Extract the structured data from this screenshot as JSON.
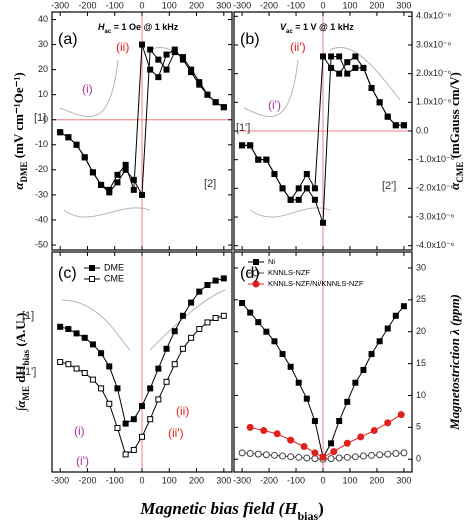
{
  "figure": {
    "xlabel": [
      "Magnetic bias field (H",
      "bias",
      ")"
    ]
  },
  "chart_data": [
    {
      "type": "line",
      "ylabel": [
        "α",
        "DME",
        " (mV cm⁻¹Oe⁻¹)"
      ],
      "condition": [
        "H",
        "ac",
        " = 1 Oe @ 1 kHz"
      ],
      "x": [
        -300,
        -270,
        -240,
        -210,
        -180,
        -150,
        -120,
        -90,
        -60,
        -30,
        0,
        30,
        60,
        90,
        120,
        150,
        180,
        210,
        240,
        270,
        300
      ],
      "xlim": [
        -330,
        330
      ],
      "xticks": [
        -300,
        -200,
        -100,
        0,
        100,
        200,
        300
      ],
      "ylim": [
        -52,
        43
      ],
      "yticks": [
        40,
        30,
        20,
        10,
        0,
        -10,
        -20,
        -30,
        -40,
        -50
      ],
      "refline_x": 0,
      "refline_y": 0,
      "refline_color": "#f08080",
      "series": [
        {
          "color": "#000",
          "marker": "square",
          "filled": true,
          "values": [
            -5,
            -7,
            -10,
            -15,
            -21,
            -26,
            -28,
            -22,
            -18,
            -28,
            30,
            20,
            17,
            26,
            28,
            24,
            19,
            14,
            10,
            7,
            5
          ]
        },
        {
          "color": "#000",
          "marker": "square",
          "filled": true,
          "values": [
            -5,
            -7,
            -10,
            -15,
            -21,
            -26,
            -29,
            -25,
            -20,
            -24,
            -30,
            28,
            24,
            20,
            27,
            25,
            20,
            15,
            10,
            7,
            5
          ]
        }
      ],
      "annotations": [
        {
          "text": "(a)",
          "color": "#000"
        },
        {
          "text": "(ii)",
          "color": "#e0201e"
        },
        {
          "text": "(i)",
          "color": "#b0309a"
        },
        {
          "text": "[1]",
          "color": "#333"
        },
        {
          "text": "[2]",
          "color": "#333"
        }
      ]
    },
    {
      "type": "line",
      "ylabel": [
        "α",
        "CME",
        " (mGauss cm/V)"
      ],
      "condition": [
        "V",
        "ac",
        " = 1 V @ 1 kHz"
      ],
      "x": [
        -300,
        -270,
        -240,
        -210,
        -180,
        -150,
        -120,
        -90,
        -60,
        -30,
        0,
        30,
        60,
        90,
        120,
        150,
        180,
        210,
        240,
        270,
        300
      ],
      "xlim": [
        -330,
        330
      ],
      "xticks": [
        -300,
        -200,
        -100,
        0,
        100,
        200,
        300
      ],
      "ylim": [
        -4.15e-06,
        4.15e-06
      ],
      "yticks": [
        {
          "value": 4e-06,
          "label": "4.0x10⁻⁶"
        },
        {
          "value": 3e-06,
          "label": "3.0x10⁻⁶"
        },
        {
          "value": 2e-06,
          "label": "2.0x10⁻⁶"
        },
        {
          "value": 1e-06,
          "label": "1.0x10⁻⁶"
        },
        {
          "value": 0,
          "label": "0.0"
        },
        {
          "value": -1e-06,
          "label": "-1.0x10⁻⁶"
        },
        {
          "value": -2e-06,
          "label": "-2.0x10⁻⁶"
        },
        {
          "value": -3e-06,
          "label": "-3.0x10⁻⁶"
        },
        {
          "value": -4e-06,
          "label": "-4.0x10⁻⁶"
        }
      ],
      "refline_x": 0,
      "refline_y": 0,
      "refline_color": "#f08080",
      "series": [
        {
          "color": "#000",
          "marker": "square",
          "filled": true,
          "values": [
            -5e-07,
            -5e-07,
            -1e-06,
            -1e-06,
            -1.5e-06,
            -2e-06,
            -2.4e-06,
            -2e-06,
            -1.5e-06,
            -2e-06,
            2.6e-06,
            2.2e-06,
            2e-06,
            2.4e-06,
            2.6e-06,
            2.2e-06,
            1.5e-06,
            1e-06,
            5e-07,
            2e-07,
            2e-07
          ]
        },
        {
          "color": "#000",
          "marker": "square",
          "filled": true,
          "values": [
            -5e-07,
            -5e-07,
            -1e-06,
            -1e-06,
            -1.5e-06,
            -2e-06,
            -2.4e-06,
            -2.4e-06,
            -2e-06,
            -2.4e-06,
            -3.2e-06,
            2.6e-06,
            2.6e-06,
            2e-06,
            2.2e-06,
            2.2e-06,
            1.5e-06,
            1e-06,
            5e-07,
            2e-07,
            2e-07
          ]
        }
      ],
      "annotations": [
        {
          "text": "(b)",
          "color": "#000"
        },
        {
          "text": "(ii')",
          "color": "#e0201e"
        },
        {
          "text": "(i')",
          "color": "#b0309a"
        },
        {
          "text": "[1']",
          "color": "#333"
        },
        {
          "text": "[2']",
          "color": "#333"
        }
      ]
    },
    {
      "type": "line",
      "ylabel": [
        "∫α",
        "ME",
        " dH",
        "bias",
        " (A.U.)"
      ],
      "x": [
        -300,
        -270,
        -240,
        -210,
        -180,
        -150,
        -120,
        -90,
        -60,
        -30,
        0,
        30,
        60,
        90,
        120,
        150,
        180,
        210,
        240,
        270,
        300
      ],
      "xlim": [
        -330,
        330
      ],
      "xticks": [
        -300,
        -200,
        -100,
        0,
        100,
        200,
        300
      ],
      "ylim": [
        0,
        100
      ],
      "refline_x": 0,
      "refline_color": "#f08080",
      "legend": "upper left",
      "series": [
        {
          "name": "DME",
          "color": "#000",
          "marker": "square",
          "filled": true,
          "values": [
            66,
            65,
            63,
            61,
            58,
            54,
            48,
            38,
            22,
            24,
            30,
            38,
            47,
            56,
            64,
            71,
            77,
            82,
            85,
            87,
            88
          ]
        },
        {
          "name": "CME",
          "color": "#000",
          "marker": "square",
          "filled": false,
          "values": [
            50,
            49,
            47,
            45,
            42,
            38,
            31,
            20,
            8,
            10,
            16,
            24,
            33,
            41,
            49,
            56,
            61,
            65,
            68,
            70,
            71
          ]
        }
      ],
      "annotations": [
        {
          "text": "(c)",
          "color": "#000"
        },
        {
          "text": "[1]",
          "color": "#333"
        },
        {
          "text": "[1']",
          "color": "#333"
        },
        {
          "text": "(i)",
          "color": "#b0309a"
        },
        {
          "text": "(ii)",
          "color": "#e0201e"
        },
        {
          "text": "(ii')",
          "color": "#e0201e"
        },
        {
          "text": "(i')",
          "color": "#b0309a"
        }
      ]
    },
    {
      "type": "line",
      "ylabel": [
        "Magnetostriction λ (ppm)"
      ],
      "x": [
        -300,
        -270,
        -240,
        -210,
        -180,
        -150,
        -120,
        -90,
        -60,
        -30,
        0,
        30,
        60,
        90,
        120,
        150,
        180,
        210,
        240,
        270,
        300
      ],
      "xlim": [
        -330,
        330
      ],
      "xticks": [
        -300,
        -200,
        -100,
        0,
        100,
        200,
        300
      ],
      "ylim": [
        -2,
        32.5
      ],
      "yticks": [
        0,
        5,
        10,
        15,
        20,
        25,
        30
      ],
      "refline_x": 0,
      "refline_color": "#f08080",
      "legend": "upper left",
      "series": [
        {
          "name": "Ni",
          "color": "#000",
          "marker": "square",
          "filled": true,
          "values": [
            24.5,
            23,
            21.5,
            20,
            18.5,
            16.5,
            14.5,
            12,
            9.5,
            6,
            0.3,
            2.5,
            6,
            9,
            12,
            14,
            16.5,
            18.5,
            20.5,
            22.5,
            24
          ]
        },
        {
          "name": "KNNLS-NZF",
          "color": "#444",
          "marker": "circle",
          "filled": false,
          "values": [
            1,
            0.9,
            0.8,
            0.7,
            0.6,
            0.5,
            0.4,
            0.3,
            0.2,
            0.1,
            0,
            0.1,
            0.2,
            0.3,
            0.4,
            0.5,
            0.6,
            0.7,
            0.8,
            0.9,
            1
          ]
        },
        {
          "name": "KNNLS-NZF/Ni/KNNLS-NZF",
          "color": "#e0201e",
          "marker": "circle",
          "filled": true,
          "x": [
            -270,
            -220,
            -170,
            -120,
            -70,
            -30,
            0,
            40,
            90,
            140,
            190,
            240,
            290
          ],
          "values": [
            5,
            4.5,
            4,
            3,
            2,
            1,
            0.3,
            1.2,
            2.5,
            3.5,
            4.5,
            5.7,
            7
          ]
        }
      ],
      "annotations": [
        {
          "text": "(d)",
          "color": "#000"
        }
      ]
    }
  ]
}
